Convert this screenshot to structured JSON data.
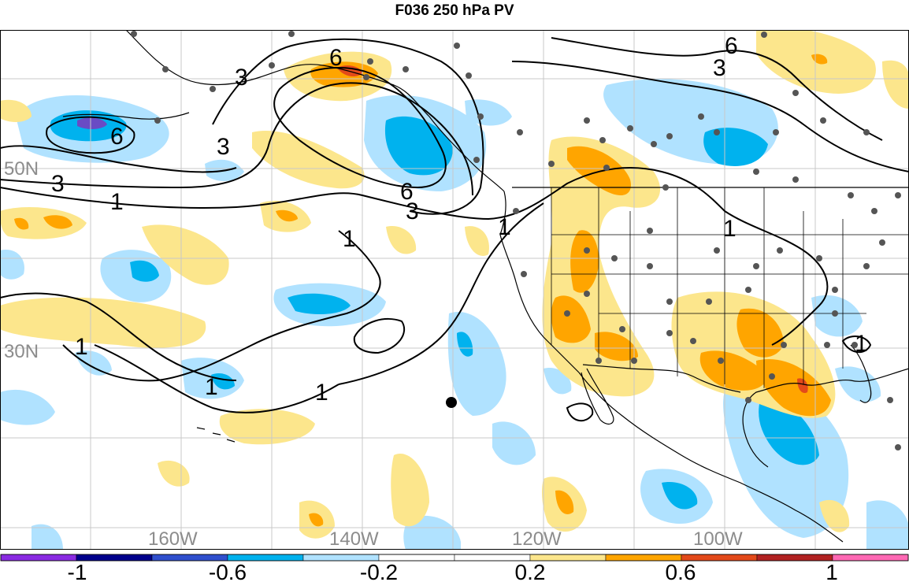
{
  "title": "F036 250 hPa PV",
  "lat_labels": [
    "50N",
    "30N"
  ],
  "lon_labels": [
    "160W",
    "140W",
    "120W",
    "100W"
  ],
  "contour_labels": [
    "6",
    "3",
    "3",
    "6",
    "6",
    "3",
    "3",
    "6",
    "3",
    "1",
    "1",
    "1",
    "1",
    "1",
    "1",
    "1",
    "1"
  ],
  "colorbar": {
    "colors": [
      "#8a2be2",
      "#00008b",
      "#2f4fcd",
      "#00b2ee",
      "#b0e2ff",
      "#ffffff",
      "#ffffff",
      "#fce68c",
      "#ffa500",
      "#e34a1a",
      "#b22222",
      "#ff69b4"
    ],
    "tick_labels": [
      "-1",
      "-0.6",
      "-0.2",
      "0.2",
      "0.6",
      "1"
    ]
  },
  "legend_colors": {
    "strong_negative": "#00b2ee",
    "weak_negative": "#b0e2ff",
    "weak_positive": "#fce68c",
    "strong_positive": "#ffa500",
    "very_strong_positive": "#e34a1a",
    "very_strong_negative": "#6a4bc4"
  }
}
